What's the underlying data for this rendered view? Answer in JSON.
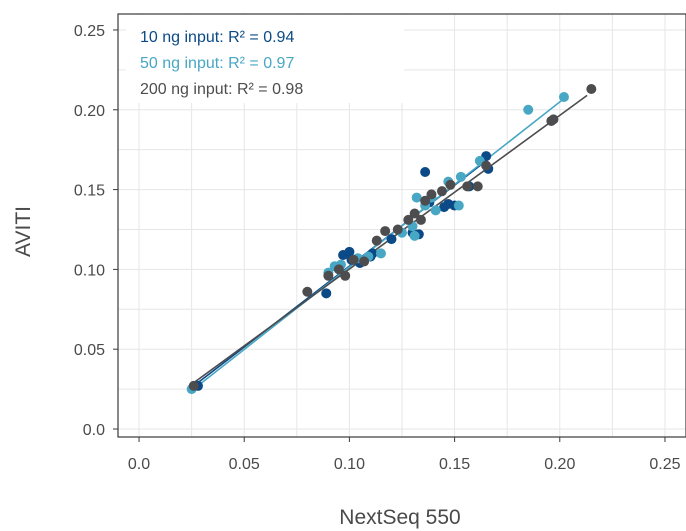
{
  "chart_data": {
    "type": "scatter",
    "title": "",
    "xlabel": "NextSeq 550",
    "ylabel": "AVITI",
    "xlim": [
      -0.01,
      0.26
    ],
    "ylim": [
      -0.005,
      0.26
    ],
    "x_ticks": [
      0.0,
      0.05,
      0.1,
      0.15,
      0.2,
      0.25
    ],
    "x_tick_labels": [
      "0.0",
      "0.05",
      "0.10",
      "0.15",
      "0.20",
      "0.25"
    ],
    "y_ticks": [
      0.0,
      0.05,
      0.1,
      0.15,
      0.2,
      0.25
    ],
    "y_tick_labels": [
      "0.0",
      "0.05",
      "0.10",
      "0.15",
      "0.20",
      "0.25"
    ],
    "grid": true,
    "legend_position": "top-left",
    "series": [
      {
        "name": "10 ng input",
        "r2_text": "R² = 0.94",
        "color": "#0b4a86",
        "points": [
          [
            0.028,
            0.027
          ],
          [
            0.089,
            0.085
          ],
          [
            0.097,
            0.109
          ],
          [
            0.1,
            0.111
          ],
          [
            0.101,
            0.106
          ],
          [
            0.105,
            0.104
          ],
          [
            0.11,
            0.108
          ],
          [
            0.111,
            0.11
          ],
          [
            0.12,
            0.119
          ],
          [
            0.13,
            0.123
          ],
          [
            0.133,
            0.122
          ],
          [
            0.136,
            0.161
          ],
          [
            0.138,
            0.142
          ],
          [
            0.145,
            0.139
          ],
          [
            0.147,
            0.141
          ],
          [
            0.15,
            0.14
          ],
          [
            0.157,
            0.152
          ],
          [
            0.165,
            0.171
          ],
          [
            0.166,
            0.163
          ]
        ],
        "fit": [
          [
            0.025,
            0.026
          ],
          [
            0.167,
            0.17
          ]
        ]
      },
      {
        "name": "50 ng input",
        "r2_text": "R² = 0.97",
        "color": "#48a7c4",
        "points": [
          [
            0.025,
            0.025
          ],
          [
            0.09,
            0.098
          ],
          [
            0.093,
            0.102
          ],
          [
            0.096,
            0.103
          ],
          [
            0.104,
            0.107
          ],
          [
            0.109,
            0.108
          ],
          [
            0.115,
            0.11
          ],
          [
            0.125,
            0.123
          ],
          [
            0.13,
            0.127
          ],
          [
            0.131,
            0.121
          ],
          [
            0.132,
            0.145
          ],
          [
            0.136,
            0.14
          ],
          [
            0.139,
            0.145
          ],
          [
            0.141,
            0.137
          ],
          [
            0.147,
            0.155
          ],
          [
            0.152,
            0.14
          ],
          [
            0.153,
            0.158
          ],
          [
            0.162,
            0.168
          ],
          [
            0.185,
            0.2
          ],
          [
            0.202,
            0.208
          ]
        ],
        "fit": [
          [
            0.025,
            0.024
          ],
          [
            0.203,
            0.208
          ]
        ]
      },
      {
        "name": "200 ng input",
        "r2_text": "R² = 0.98",
        "color": "#4d4d4f",
        "points": [
          [
            0.026,
            0.027
          ],
          [
            0.08,
            0.086
          ],
          [
            0.09,
            0.096
          ],
          [
            0.095,
            0.1
          ],
          [
            0.098,
            0.096
          ],
          [
            0.102,
            0.106
          ],
          [
            0.107,
            0.105
          ],
          [
            0.113,
            0.118
          ],
          [
            0.117,
            0.124
          ],
          [
            0.123,
            0.125
          ],
          [
            0.128,
            0.131
          ],
          [
            0.131,
            0.135
          ],
          [
            0.134,
            0.131
          ],
          [
            0.136,
            0.143
          ],
          [
            0.139,
            0.147
          ],
          [
            0.144,
            0.149
          ],
          [
            0.148,
            0.153
          ],
          [
            0.156,
            0.152
          ],
          [
            0.161,
            0.152
          ],
          [
            0.165,
            0.165
          ],
          [
            0.196,
            0.193
          ],
          [
            0.197,
            0.194
          ],
          [
            0.215,
            0.213
          ]
        ],
        "fit": [
          [
            0.026,
            0.029
          ],
          [
            0.213,
            0.209
          ]
        ]
      }
    ]
  }
}
